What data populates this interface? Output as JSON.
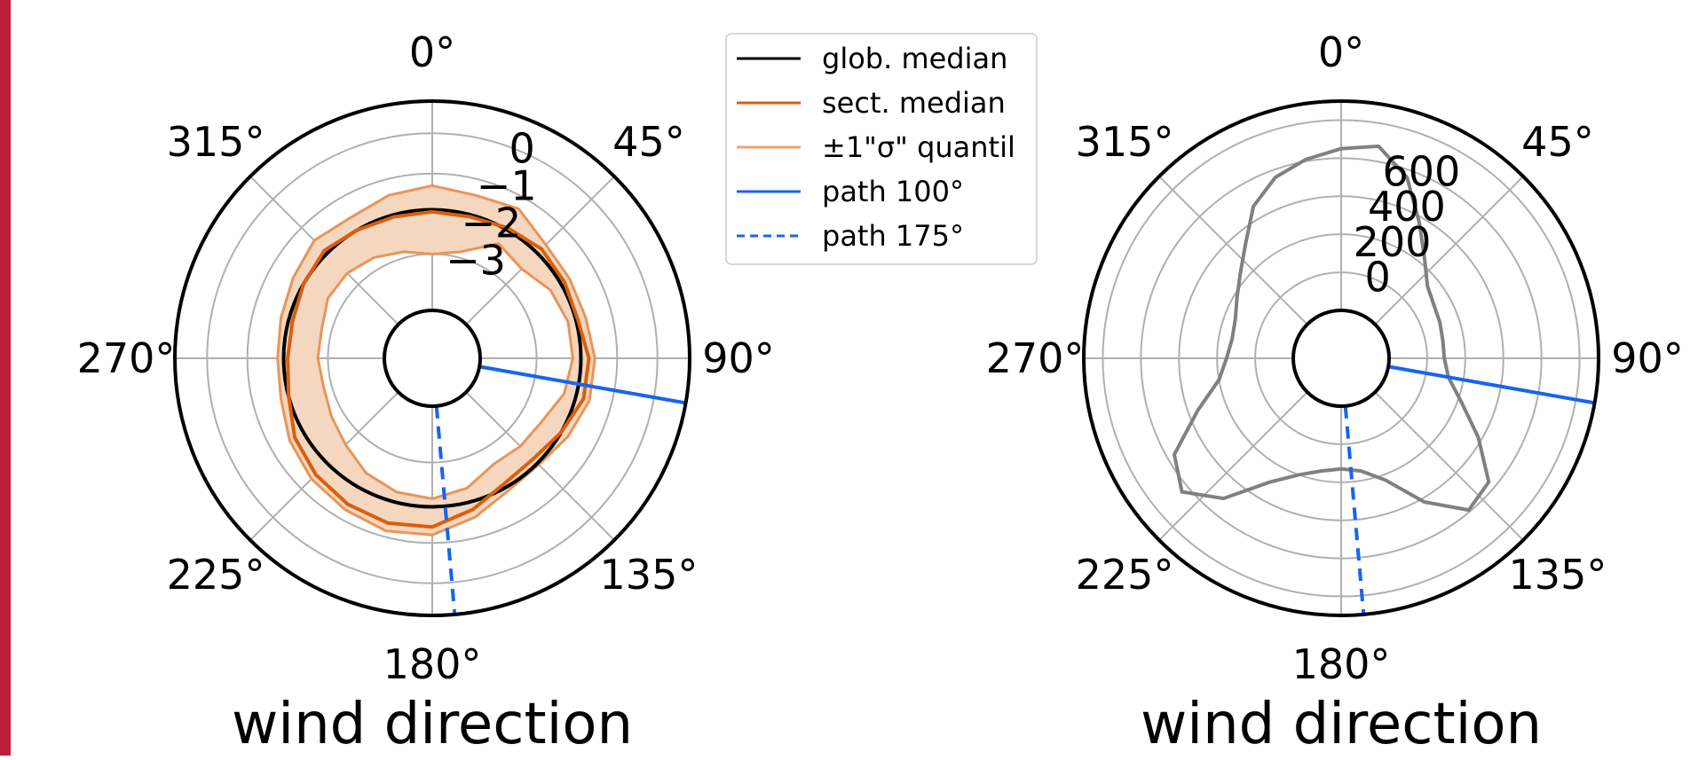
{
  "colors": {
    "accent_bar": "#be1e3c",
    "global_median": "#000000",
    "sector_median": "#d95f0e",
    "quantile_band_fill": "#f5d7bf",
    "quantile_band_line": "#e8955a",
    "path_100": "#1764f0",
    "path_175": "#1764f0",
    "count_line": "#808080",
    "grid": "#b0b0b0"
  },
  "legend": {
    "items": [
      {
        "label": "glob. median",
        "style": "solid",
        "color": "#000000"
      },
      {
        "label": "sect. median",
        "style": "solid",
        "color": "#d95f0e"
      },
      {
        "label": "±1\"σ\" quantil",
        "style": "solid",
        "color": "#eba474"
      },
      {
        "label": "path 100°",
        "style": "solid",
        "color": "#1764f0"
      },
      {
        "label": "path 175°",
        "style": "dashed",
        "color": "#1764f0"
      }
    ]
  },
  "chart_data": [
    {
      "type": "polar-line",
      "xlabel": "wind direction",
      "theta_zero": "N",
      "theta_direction": "clockwise",
      "theta_ticks": [
        "0°",
        "45°",
        "90°",
        "135°",
        "180°",
        "225°",
        "270°",
        "315°"
      ],
      "r_ticks": [
        "0",
        "−1",
        "−2",
        "−3"
      ],
      "r_tick_values": [
        0,
        -1,
        -2,
        -3
      ],
      "r_axis_inverted": true,
      "grid": true,
      "legend_position": "right, outside",
      "global_median": -1.9,
      "paths": [
        {
          "name": "path 100°",
          "direction_deg": 100,
          "style": "solid"
        },
        {
          "name": "path 175°",
          "direction_deg": 175,
          "style": "dashed"
        }
      ],
      "directions_deg": [
        0,
        15,
        30,
        45,
        60,
        75,
        90,
        105,
        120,
        135,
        150,
        165,
        180,
        195,
        210,
        225,
        240,
        255,
        270,
        285,
        300,
        315,
        330,
        345
      ],
      "sector_median": [
        -1.95,
        -1.95,
        -1.85,
        -1.75,
        -1.8,
        -1.85,
        -1.7,
        -1.7,
        -1.9,
        -2.05,
        -2.0,
        -1.7,
        -1.4,
        -1.35,
        -1.4,
        -1.5,
        -1.65,
        -1.9,
        -2.0,
        -2.0,
        -1.9,
        -1.8,
        -1.9,
        -1.95
      ],
      "quantile_upper": [
        -1.3,
        -1.4,
        -1.3,
        -1.6,
        -1.65,
        -1.65,
        -1.55,
        -1.55,
        -1.7,
        -1.85,
        -1.8,
        -1.5,
        -1.2,
        -1.15,
        -1.25,
        -1.35,
        -1.5,
        -1.7,
        -1.75,
        -1.7,
        -1.6,
        -1.45,
        -1.55,
        -1.4
      ],
      "quantile_lower": [
        -3.0,
        -2.85,
        -2.3,
        -2.45,
        -2.2,
        -2.1,
        -2.1,
        -2.2,
        -2.45,
        -2.5,
        -2.55,
        -2.25,
        -2.1,
        -2.15,
        -2.3,
        -2.55,
        -2.7,
        -2.8,
        -2.75,
        -2.75,
        -2.6,
        -2.6,
        -2.7,
        -2.85
      ]
    },
    {
      "type": "polar-line",
      "xlabel": "wind direction",
      "theta_zero": "N",
      "theta_direction": "clockwise",
      "theta_ticks": [
        "0°",
        "45°",
        "90°",
        "135°",
        "180°",
        "225°",
        "270°",
        "315°"
      ],
      "r_ticks": [
        "0",
        "200",
        "400",
        "600"
      ],
      "r_tick_values": [
        0,
        200,
        400,
        600
      ],
      "grid": true,
      "paths": [
        {
          "name": "path 100°",
          "direction_deg": 100,
          "style": "solid"
        },
        {
          "name": "path 175°",
          "direction_deg": 175,
          "style": "dashed"
        }
      ],
      "directions_deg": [
        0,
        10,
        20,
        30,
        40,
        50,
        60,
        70,
        80,
        90,
        100,
        110,
        120,
        130,
        140,
        150,
        160,
        170,
        180,
        190,
        200,
        210,
        220,
        230,
        240,
        250,
        260,
        270,
        280,
        290,
        300,
        310,
        320,
        330,
        340,
        350
      ],
      "counts": [
        650,
        680,
        560,
        370,
        230,
        140,
        110,
        100,
        90,
        90,
        120,
        220,
        380,
        560,
        590,
        420,
        230,
        150,
        130,
        150,
        200,
        300,
        510,
        640,
        560,
        350,
        200,
        150,
        130,
        140,
        180,
        240,
        330,
        470,
        560,
        610
      ]
    }
  ]
}
